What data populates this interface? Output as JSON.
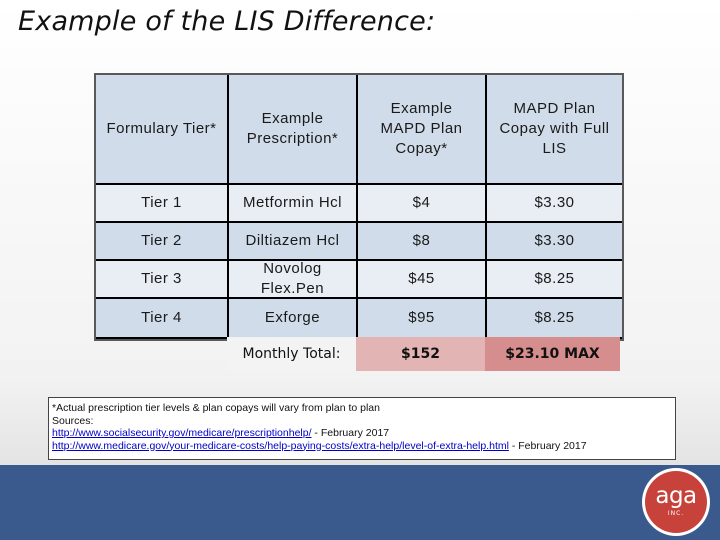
{
  "title": "Example of the LIS Difference:",
  "table": {
    "headers": [
      "Formulary Tier*",
      "Example Prescription*",
      "Example MAPD Plan Copay*",
      "MAPD Plan Copay with Full LIS"
    ],
    "rows": [
      [
        "Tier 1",
        "Metformin Hcl",
        "$4",
        "$3.30"
      ],
      [
        "Tier 2",
        "Diltiazem Hcl",
        "$8",
        "$3.30"
      ],
      [
        "Tier 3",
        "Novolog Flex.Pen",
        "$45",
        "$8.25"
      ],
      [
        "Tier 4",
        "Exforge",
        "$95",
        "$8.25"
      ]
    ],
    "total": {
      "label": "Monthly Total:",
      "copay_total": "$152",
      "lis_total": "$23.10 MAX"
    },
    "colors": {
      "row_dark": "#d0dcea",
      "row_light": "#e9eef5",
      "total_a": "#e3b4b4",
      "total_b": "#d58d8d"
    }
  },
  "note": {
    "disclaimer": "*Actual prescription tier levels & plan copays will vary from plan to plan",
    "sources_label": "Sources:",
    "link1": "http://www.socialsecurity.gov/medicare/prescriptionhelp/",
    "link1_suffix": " - February 2017",
    "link2": "http://www.medicare.gov/your-medicare-costs/help-paying-costs/extra-help/level-of-extra-help.html",
    "link2_suffix": " - February 2017"
  },
  "logo": {
    "word": "aga",
    "sub": "INC.",
    "color": "#c6423a"
  },
  "footer_color": "#3a5a8e"
}
